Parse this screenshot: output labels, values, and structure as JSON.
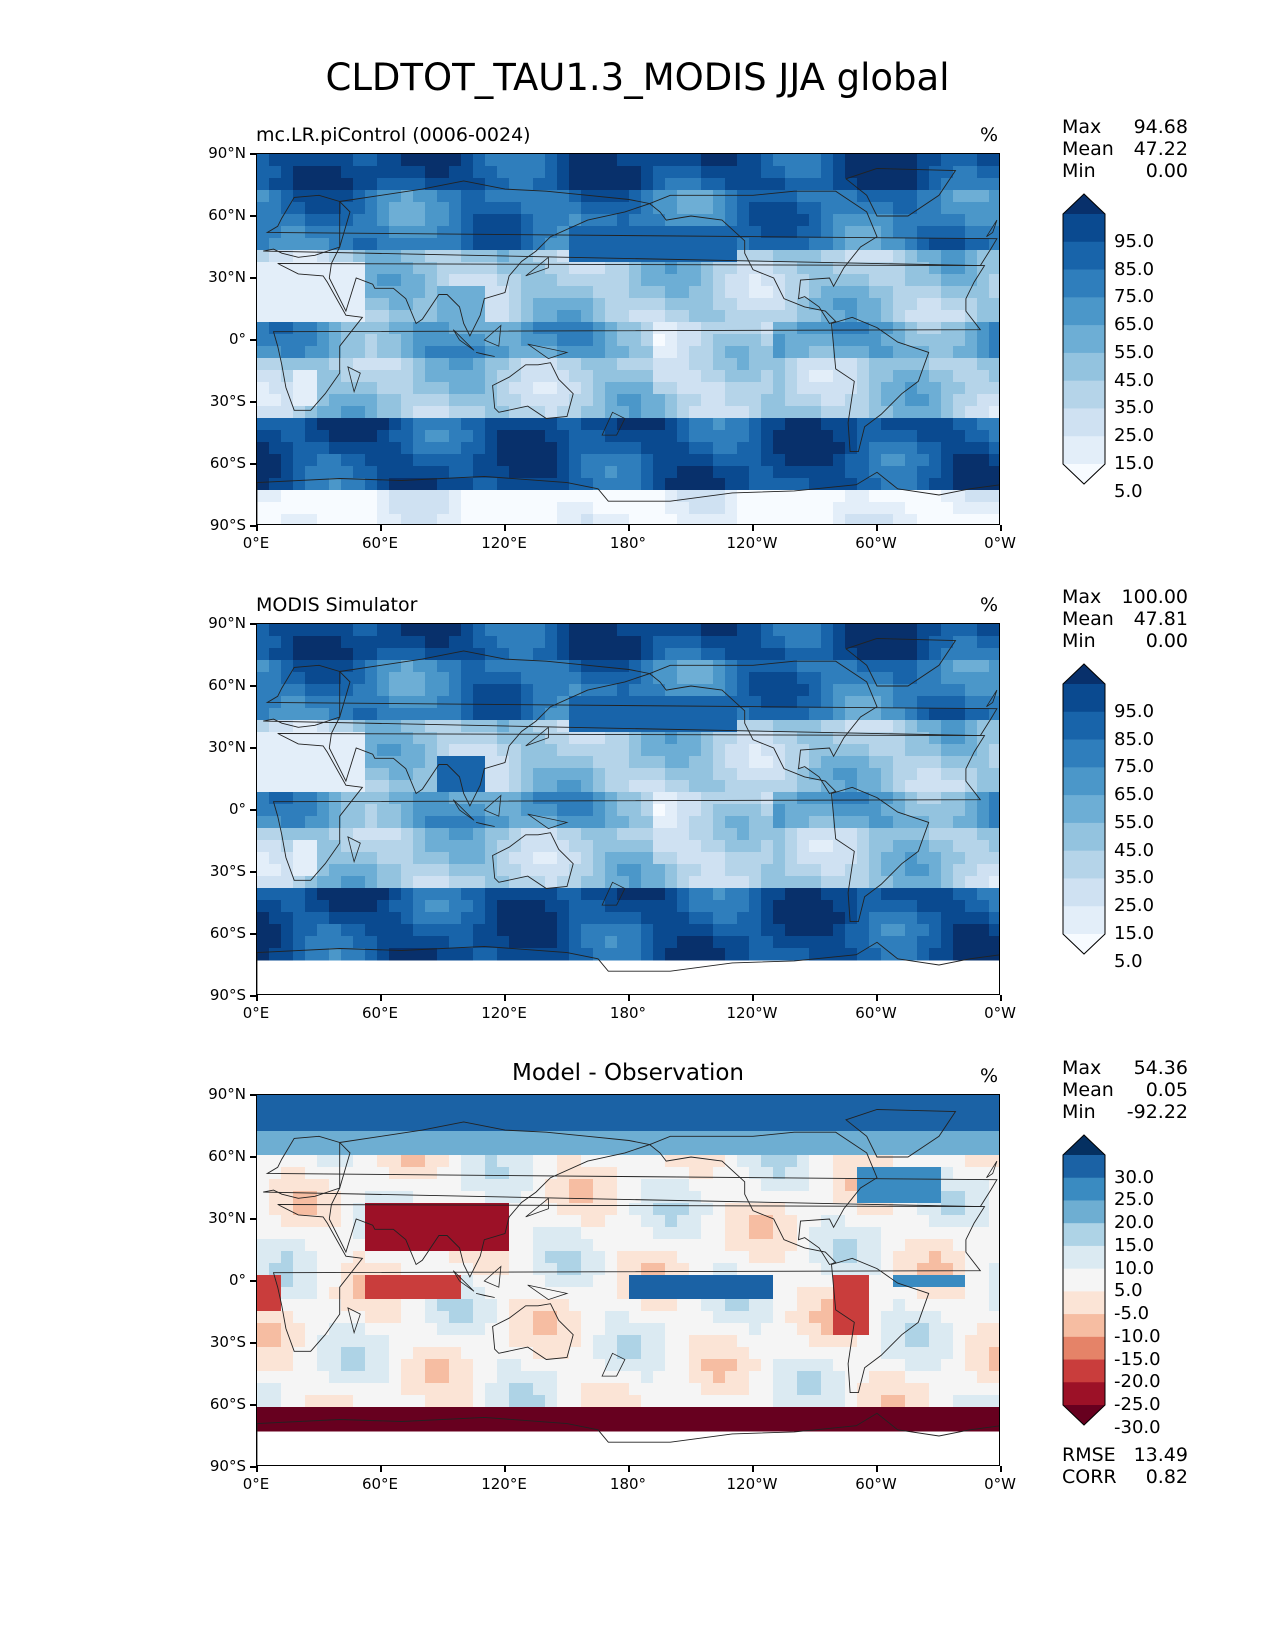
{
  "figure": {
    "title": "CLDTOT_TAU1.3_MODIS JJA global"
  },
  "colors": {
    "blues": [
      "#f7fbff",
      "#e3eef9",
      "#cfe1f2",
      "#b5d4e9",
      "#93c3df",
      "#6daed5",
      "#4b97c9",
      "#2f7ebc",
      "#1864aa",
      "#0a4a90",
      "#08306b"
    ],
    "diverging": [
      "#67001f",
      "#9c1127",
      "#c93d3c",
      "#e58368",
      "#f6bda2",
      "#fbe4d6",
      "#f5f5f5",
      "#dbeaf2",
      "#aed3e6",
      "#6eaed2",
      "#3a8bc1",
      "#1b62a5",
      "#053061"
    ]
  },
  "chart_data": [
    {
      "type": "heatmap",
      "panel": "test",
      "title_left": "mc.LR.piControl (0006-0024)",
      "units": "%",
      "stats": {
        "max_label": "Max",
        "max": "94.68",
        "mean_label": "Mean",
        "mean": "47.22",
        "min_label": "Min",
        "min": "0.00"
      },
      "colorbar": {
        "levels": [
          "95.0",
          "85.0",
          "75.0",
          "65.0",
          "55.0",
          "45.0",
          "35.0",
          "25.0",
          "15.0",
          "5.0"
        ],
        "palette": "blues",
        "extend": "both"
      },
      "x_ticks": [
        "0°E",
        "60°E",
        "120°E",
        "180°",
        "120°W",
        "60°W",
        "0°W"
      ],
      "y_ticks": [
        "90°N",
        "60°N",
        "30°N",
        "0°",
        "30°S",
        "60°S",
        "90°S"
      ],
      "xlim": [
        0,
        360
      ],
      "ylim": [
        -90,
        90
      ]
    },
    {
      "type": "heatmap",
      "panel": "reference",
      "title_left": "MODIS Simulator",
      "units": "%",
      "stats": {
        "max_label": "Max",
        "max": "100.00",
        "mean_label": "Mean",
        "mean": "47.81",
        "min_label": "Min",
        "min": "0.00"
      },
      "colorbar": {
        "levels": [
          "95.0",
          "85.0",
          "75.0",
          "65.0",
          "55.0",
          "45.0",
          "35.0",
          "25.0",
          "15.0",
          "5.0"
        ],
        "palette": "blues",
        "extend": "both"
      },
      "x_ticks": [
        "0°E",
        "60°E",
        "120°E",
        "180°",
        "120°W",
        "60°W",
        "0°W"
      ],
      "y_ticks": [
        "90°N",
        "60°N",
        "30°N",
        "0°",
        "30°S",
        "60°S",
        "90°S"
      ],
      "xlim": [
        0,
        360
      ],
      "ylim": [
        -90,
        90
      ]
    },
    {
      "type": "heatmap",
      "panel": "difference",
      "title_center": "Model - Observation",
      "units": "%",
      "stats": {
        "max_label": "Max",
        "max": "54.36",
        "mean_label": "Mean",
        "mean": "0.05",
        "min_label": "Min",
        "min": "-92.22"
      },
      "colorbar": {
        "levels": [
          "30.0",
          "25.0",
          "20.0",
          "15.0",
          "10.0",
          "5.0",
          "-5.0",
          "-10.0",
          "-15.0",
          "-20.0",
          "-25.0",
          "-30.0"
        ],
        "palette": "diverging",
        "extend": "both"
      },
      "error_stats": {
        "rmse_label": "RMSE",
        "rmse": "13.49",
        "corr_label": "CORR",
        "corr": "0.82"
      },
      "x_ticks": [
        "0°E",
        "60°E",
        "120°E",
        "180°",
        "120°W",
        "60°W",
        "0°W"
      ],
      "y_ticks": [
        "90°N",
        "60°N",
        "30°N",
        "0°",
        "30°S",
        "60°S",
        "90°S"
      ],
      "xlim": [
        0,
        360
      ],
      "ylim": [
        -90,
        90
      ]
    }
  ]
}
